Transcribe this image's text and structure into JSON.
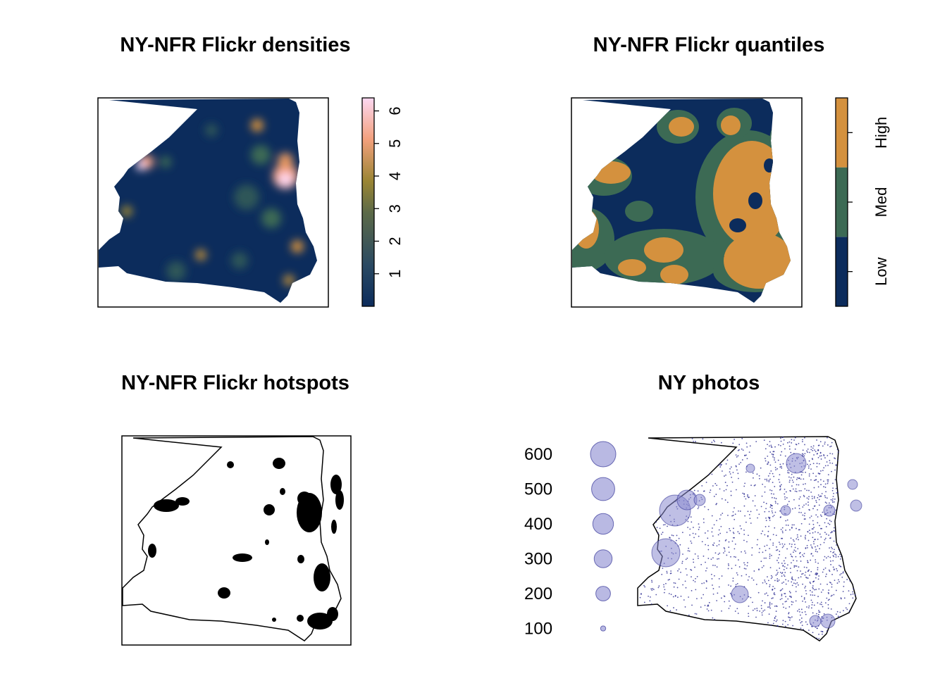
{
  "panels": {
    "densities": {
      "title": "NY-NFR Flickr densities",
      "legend_ticks": [
        "1",
        "2",
        "3",
        "4",
        "5",
        "6"
      ],
      "legend_tick_values": [
        1,
        2,
        3,
        4,
        5,
        6
      ],
      "legend_range": [
        0,
        6.4
      ],
      "colors": {
        "low": "#0c2c5c",
        "mid": "#7d7a34",
        "high": "#f6a07a",
        "top": "#fcd8f2"
      }
    },
    "quantiles": {
      "title": "NY-NFR Flickr quantiles",
      "legend_labels": [
        "Low",
        "Med",
        "High"
      ],
      "colors": {
        "low": "#0c2c5c",
        "med": "#3c6a54",
        "high": "#d4913e"
      }
    },
    "hotspots": {
      "title": "NY-NFR Flickr hotspots"
    },
    "photos": {
      "title": "NY photos",
      "size_legend": [
        "600",
        "500",
        "400",
        "300",
        "200",
        "100"
      ],
      "size_legend_values": [
        600,
        500,
        400,
        300,
        200,
        100
      ],
      "colors": {
        "point": "#1c1c8a",
        "bubble": "#8a8ad0"
      }
    }
  }
}
